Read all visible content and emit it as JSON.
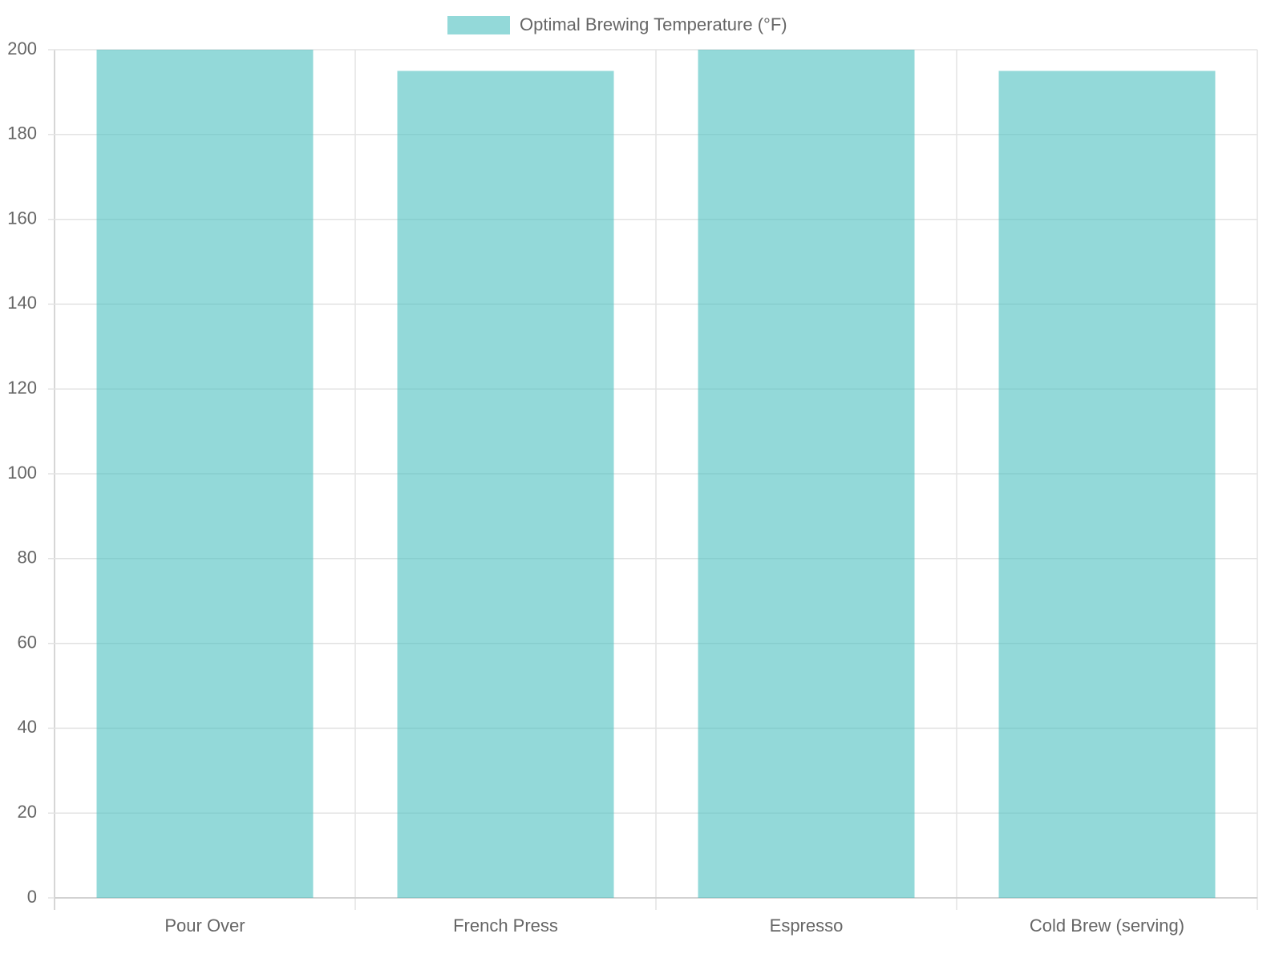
{
  "chart_data": {
    "type": "bar",
    "categories": [
      "Pour Over",
      "French Press",
      "Espresso",
      "Cold Brew (serving)"
    ],
    "series": [
      {
        "name": "Optimal Brewing Temperature (°F)",
        "color": "rgba(75,192,192,0.6)",
        "values": [
          200,
          195,
          200,
          195
        ]
      }
    ],
    "ylim": [
      0,
      200
    ],
    "yticks": [
      0,
      20,
      40,
      60,
      80,
      100,
      120,
      140,
      160,
      180,
      200
    ],
    "grid": true,
    "legend": "top"
  }
}
